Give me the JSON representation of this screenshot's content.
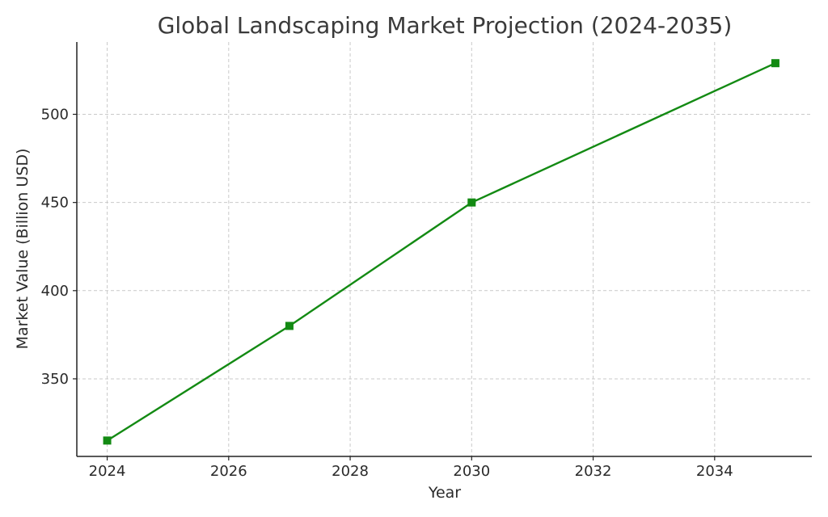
{
  "chart_data": {
    "type": "line",
    "title": "Global Landscaping Market Projection (2024-2035)",
    "xlabel": "Year",
    "ylabel": "Market Value (Billion USD)",
    "x": [
      2024,
      2027,
      2030,
      2035
    ],
    "series": [
      {
        "values": [
          315,
          380,
          450,
          529
        ],
        "color": "#138a13",
        "marker": "square"
      }
    ],
    "xlim": [
      2023.5,
      2035.6
    ],
    "ylim": [
      306,
      541
    ],
    "xticks": [
      2024,
      2026,
      2028,
      2030,
      2032,
      2034
    ],
    "yticks": [
      350,
      400,
      450,
      500
    ],
    "grid": true
  }
}
